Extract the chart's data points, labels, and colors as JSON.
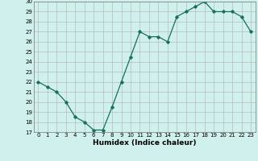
{
  "x": [
    0,
    1,
    2,
    3,
    4,
    5,
    6,
    7,
    8,
    9,
    10,
    11,
    12,
    13,
    14,
    15,
    16,
    17,
    18,
    19,
    20,
    21,
    22,
    23
  ],
  "y": [
    22,
    21.5,
    21,
    20,
    18.5,
    18,
    17.2,
    17.2,
    19.5,
    22,
    24.5,
    27,
    26.5,
    26.5,
    26,
    28.5,
    29,
    29.5,
    30,
    29,
    29,
    29,
    28.5,
    27
  ],
  "line_color": "#1a6e5c",
  "marker": "D",
  "marker_size": 1.8,
  "bg_color": "#cff0ec",
  "grid_color": "#b0b0b0",
  "xlabel": "Humidex (Indice chaleur)",
  "ylim": [
    17,
    30
  ],
  "xlim": [
    -0.5,
    23.5
  ],
  "yticks": [
    17,
    18,
    19,
    20,
    21,
    22,
    23,
    24,
    25,
    26,
    27,
    28,
    29,
    30
  ],
  "xticks": [
    0,
    1,
    2,
    3,
    4,
    5,
    6,
    7,
    8,
    9,
    10,
    11,
    12,
    13,
    14,
    15,
    16,
    17,
    18,
    19,
    20,
    21,
    22,
    23
  ],
  "tick_fontsize": 5.0,
  "xlabel_fontsize": 6.5,
  "linewidth": 0.9
}
